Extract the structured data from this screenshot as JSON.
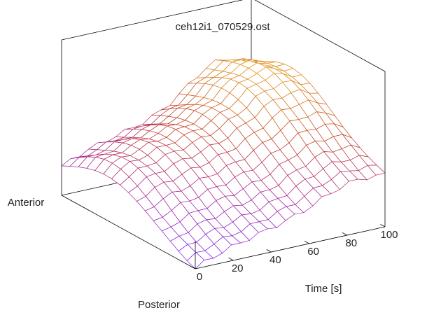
{
  "chart_data": {
    "type": "surface",
    "title": "ceh12i1_070529.ost",
    "xlabel": "Time [s]",
    "xlim": [
      0,
      100
    ],
    "xticks": [
      0,
      20,
      40,
      60,
      80,
      100
    ],
    "ylabels": {
      "near": "Posterior",
      "far": "Anterior"
    },
    "ylim": [
      0,
      1
    ],
    "zlim": [
      0,
      1
    ],
    "grid": false,
    "legend": "none",
    "colormap": [
      "#7c1df2",
      "#a81f93",
      "#c43e1f",
      "#e08a10",
      "#f2cf33"
    ],
    "rows": 16,
    "cols": 21,
    "shape": "rising ridge along time; secondary dome near anterior edge; peak near t=85"
  }
}
